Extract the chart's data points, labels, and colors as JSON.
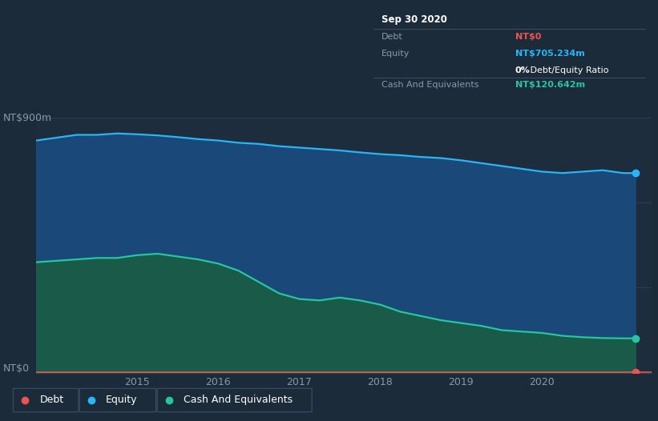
{
  "bg_color": "#1c2b3a",
  "plot_bg_color": "#1e2d3d",
  "grid_color": "#2a3f55",
  "title_label": "NT$900m",
  "zero_label": "NT$0",
  "x_tick_positions": [
    2014.75,
    2015.75,
    2016.75,
    2017.75,
    2018.75,
    2019.75
  ],
  "x_tick_labels": [
    "2015",
    "2016",
    "2017",
    "2018",
    "2019",
    "2020"
  ],
  "equity_color": "#29b6f6",
  "equity_fill": "#1a4878",
  "cash_color": "#26c6a0",
  "cash_fill": "#1a5a48",
  "debt_color": "#ef5350",
  "tooltip_bg": "#0d1117",
  "tooltip_border": "#3a4f65",
  "tooltip_title": "Sep 30 2020",
  "tooltip_debt_label": "Debt",
  "tooltip_debt_value": "NT$0",
  "tooltip_equity_label": "Equity",
  "tooltip_equity_value": "NT$705.234m",
  "tooltip_ratio_bold": "0%",
  "tooltip_ratio_normal": " Debt/Equity Ratio",
  "tooltip_cash_label": "Cash And Equivalents",
  "tooltip_cash_value": "NT$120.642m",
  "legend_debt": "Debt",
  "legend_equity": "Equity",
  "legend_cash": "Cash And Equivalents",
  "ylim": [
    0,
    900
  ],
  "xlim_start": 2013.5,
  "xlim_end": 2021.1,
  "equity_x": [
    2013.5,
    2013.75,
    2014.0,
    2014.25,
    2014.5,
    2014.75,
    2015.0,
    2015.25,
    2015.5,
    2015.75,
    2016.0,
    2016.25,
    2016.5,
    2016.75,
    2017.0,
    2017.25,
    2017.5,
    2017.75,
    2018.0,
    2018.25,
    2018.5,
    2018.75,
    2019.0,
    2019.25,
    2019.5,
    2019.75,
    2020.0,
    2020.25,
    2020.5,
    2020.75,
    2020.9
  ],
  "equity_y": [
    820,
    830,
    840,
    840,
    845,
    842,
    838,
    832,
    825,
    820,
    812,
    808,
    800,
    795,
    790,
    785,
    778,
    772,
    768,
    762,
    758,
    750,
    740,
    730,
    720,
    710,
    705,
    710,
    715,
    705,
    705
  ],
  "cash_x": [
    2013.5,
    2013.75,
    2014.0,
    2014.25,
    2014.5,
    2014.75,
    2015.0,
    2015.25,
    2015.5,
    2015.75,
    2016.0,
    2016.25,
    2016.5,
    2016.75,
    2017.0,
    2017.25,
    2017.5,
    2017.75,
    2018.0,
    2018.25,
    2018.5,
    2018.75,
    2019.0,
    2019.25,
    2019.5,
    2019.75,
    2020.0,
    2020.25,
    2020.5,
    2020.75,
    2020.9
  ],
  "cash_y": [
    390,
    395,
    400,
    405,
    405,
    415,
    420,
    410,
    400,
    385,
    360,
    320,
    280,
    260,
    255,
    265,
    255,
    240,
    215,
    200,
    185,
    175,
    165,
    150,
    145,
    140,
    130,
    125,
    122,
    121,
    121
  ],
  "debt_y": 2,
  "dot_x": 2020.9,
  "equity_dot_y": 705,
  "cash_dot_y": 121,
  "debt_dot_y": 2,
  "label_color": "#8899aa",
  "tick_color": "#8899aa"
}
